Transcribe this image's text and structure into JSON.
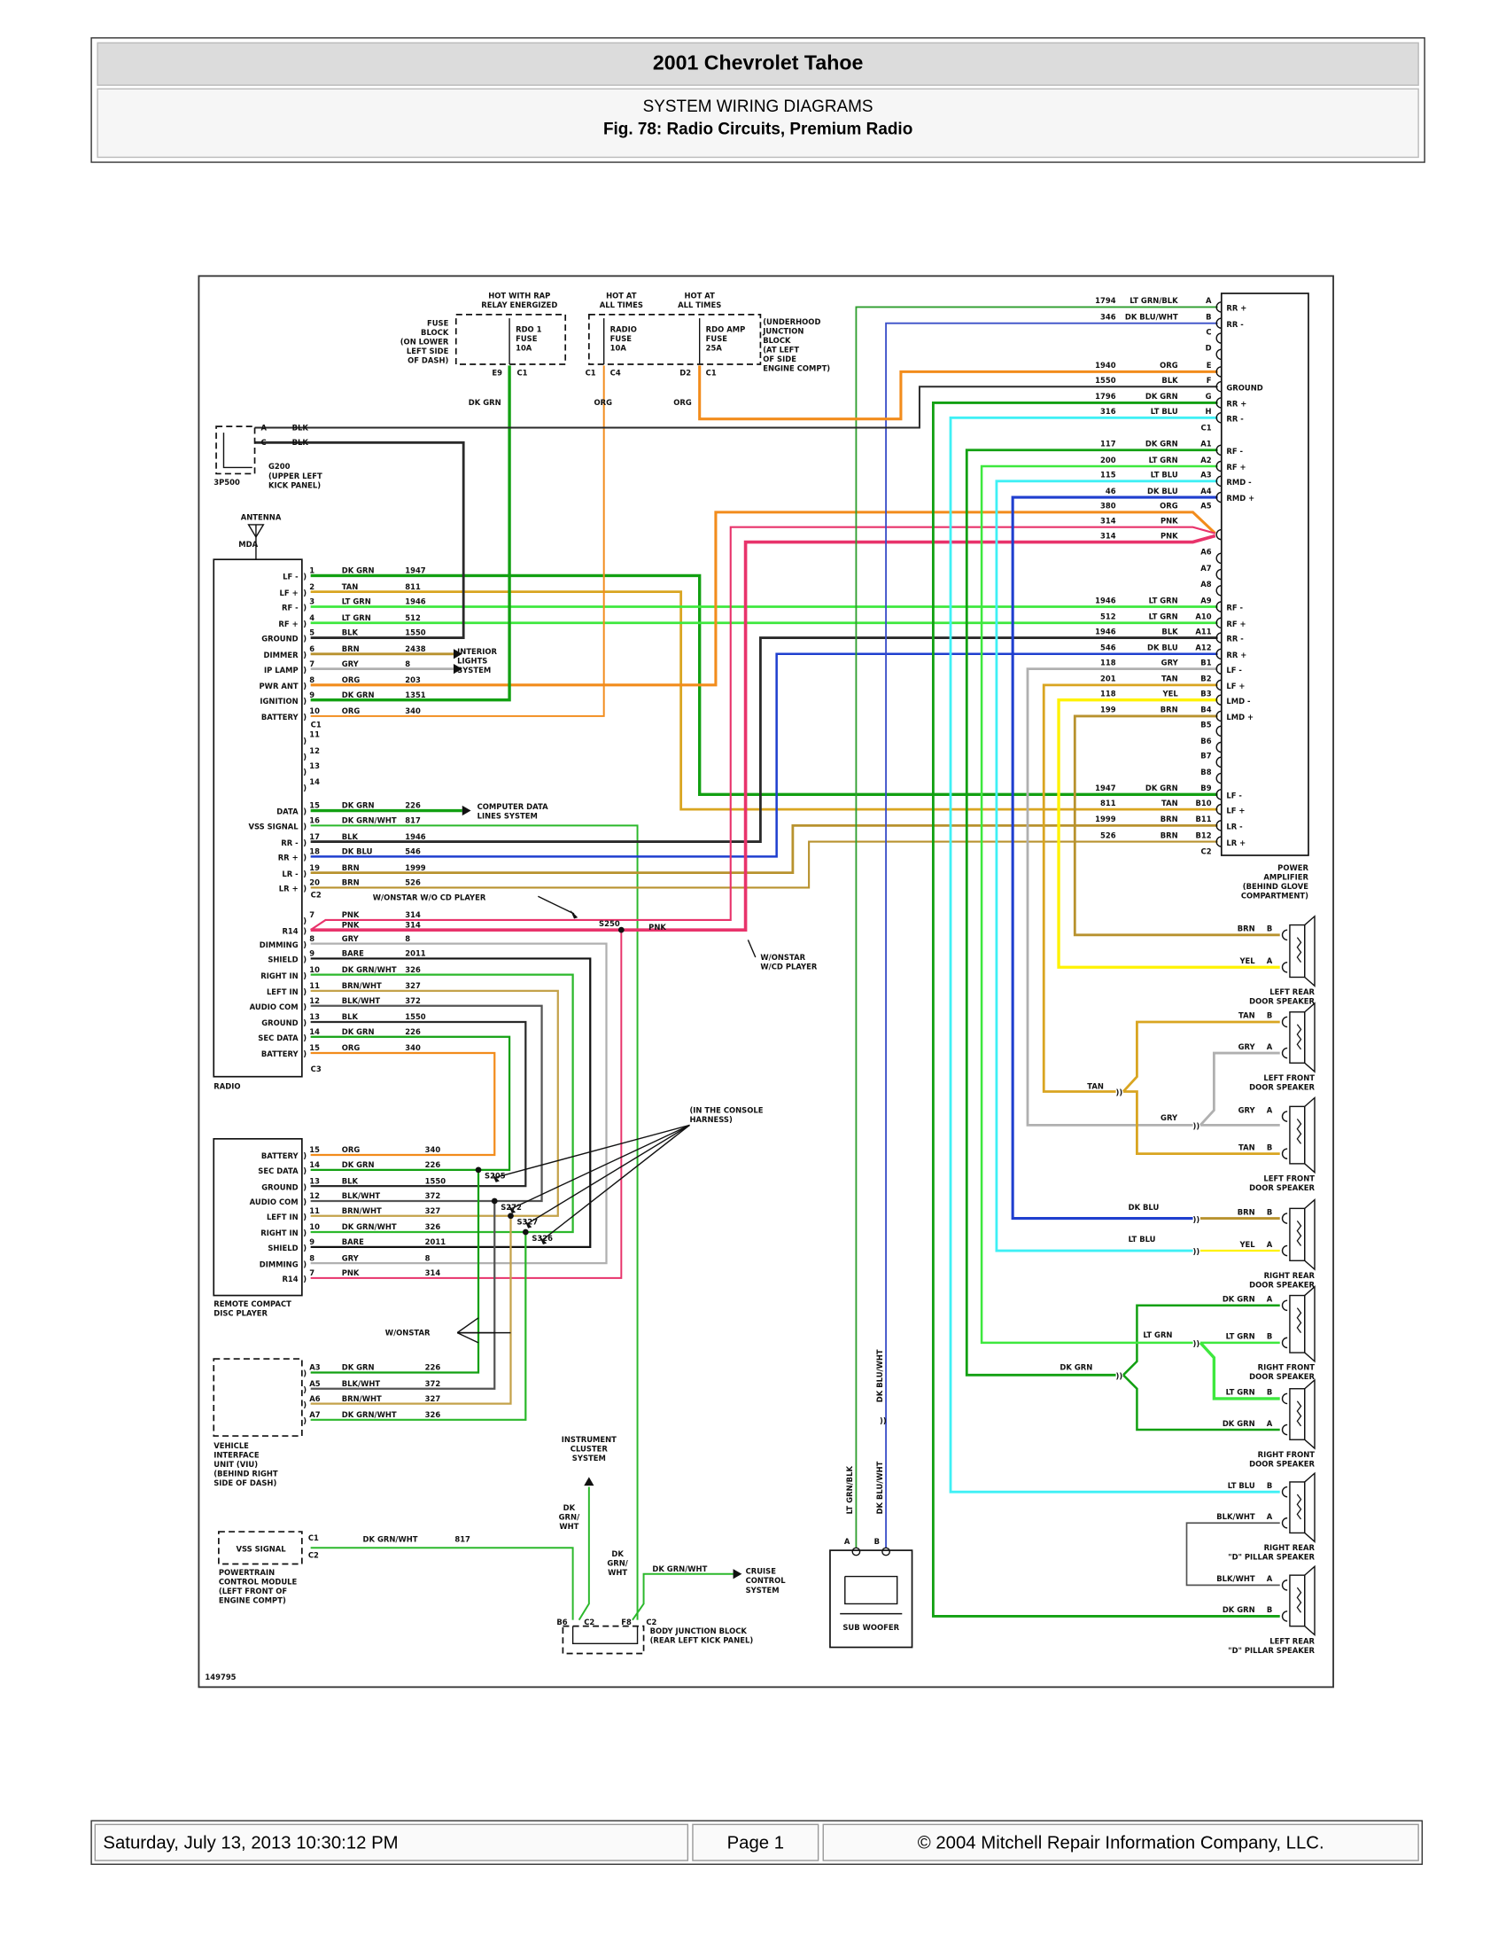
{
  "header": {
    "title": "2001 Chevrolet Tahoe",
    "section": "SYSTEM WIRING DIAGRAMS",
    "figure": "Fig. 78: Radio Circuits, Premium Radio"
  },
  "footer": {
    "timestamp": "Saturday, July 13, 2013 10:30:12 PM",
    "page": "Page 1",
    "copyright": "© 2004 Mitchell Repair Information Company, LLC."
  },
  "wire_colors": {
    "DK GRN": "#12a012",
    "LT GRN": "#3ee83e",
    "DK GRN/WHT": "#2bb82b",
    "LT GRN/BLK": "#2e9e2e",
    "TAN": "#d9a521",
    "ORG": "#f28c1c",
    "BLK": "#2a2a2a",
    "BLK/WHT": "#555555",
    "GRY": "#b0b0b0",
    "BARE": "#111111",
    "BRN": "#b8922e",
    "BRN/WHT": "#c4a24a",
    "PNK": "#e8336b",
    "DK BLU": "#1f3fcf",
    "DK BLU/WHT": "#3a4fc8",
    "LT BLU": "#3ff0f5",
    "YEL": "#fff200"
  },
  "fuses": {
    "rap_note": [
      "HOT WITH RAP",
      "RELAY ENERGIZED"
    ],
    "fuse_block": [
      "FUSE",
      "BLOCK",
      "(ON LOWER",
      "LEFT SIDE",
      "OF DASH)"
    ],
    "rdo1": [
      "RDO 1",
      "FUSE",
      "10A"
    ],
    "rdo1_pins": [
      "E9",
      "C1"
    ],
    "rdo1_wire": "DK GRN",
    "hot1": [
      "HOT AT",
      "ALL TIMES"
    ],
    "hot2": [
      "HOT AT",
      "ALL TIMES"
    ],
    "radio_fuse": [
      "RADIO",
      "FUSE",
      "10A"
    ],
    "radio_fuse_pins": [
      "C1",
      "C4"
    ],
    "radio_fuse_wire": "ORG",
    "amp_fuse": [
      "RDO AMP",
      "FUSE",
      "25A"
    ],
    "amp_fuse_pins": [
      "D2",
      "C1"
    ],
    "amp_fuse_wire": "ORG",
    "underhood": [
      "(UNDERHOOD",
      "JUNCTION",
      "BLOCK",
      "(AT LEFT",
      "OF SIDE",
      "ENGINE COMPT)"
    ]
  },
  "ground": {
    "connector": "3P500",
    "pin_a": "A",
    "pin_c": "C",
    "wire_a": "BLK",
    "wire_c": "BLK",
    "splice": "G200",
    "location": [
      "(UPPER LEFT",
      "KICK PANEL)"
    ]
  },
  "antenna": {
    "label": "ANTENNA",
    "connector": "MDA"
  },
  "radio": {
    "name": "RADIO",
    "c1_name": "C1",
    "c2_name": "C2",
    "c3_name": "C3",
    "c1": [
      {
        "pin": "1",
        "label": "LF -",
        "color": "DK GRN",
        "circuit": "1947"
      },
      {
        "pin": "2",
        "label": "LF +",
        "color": "TAN",
        "circuit": "811"
      },
      {
        "pin": "3",
        "label": "RF -",
        "color": "LT GRN",
        "circuit": "1946"
      },
      {
        "pin": "4",
        "label": "RF +",
        "color": "LT GRN",
        "circuit": "512"
      },
      {
        "pin": "5",
        "label": "GROUND",
        "color": "BLK",
        "circuit": "1550"
      },
      {
        "pin": "6",
        "label": "DIMMER",
        "color": "BRN",
        "circuit": "2438"
      },
      {
        "pin": "7",
        "label": "IP LAMP",
        "color": "GRY",
        "circuit": "8"
      },
      {
        "pin": "8",
        "label": "PWR ANT",
        "color": "ORG",
        "circuit": "203"
      },
      {
        "pin": "9",
        "label": "IGNITION",
        "color": "DK GRN",
        "circuit": "1351"
      },
      {
        "pin": "10",
        "label": "BATTERY",
        "color": "ORG",
        "circuit": "340"
      }
    ],
    "c2": [
      {
        "pin": "11",
        "label": "",
        "color": "",
        "circuit": ""
      },
      {
        "pin": "12",
        "label": "",
        "color": "",
        "circuit": ""
      },
      {
        "pin": "13",
        "label": "",
        "color": "",
        "circuit": ""
      },
      {
        "pin": "14",
        "label": "",
        "color": "",
        "circuit": ""
      },
      {
        "pin": "15",
        "label": "DATA",
        "color": "DK GRN",
        "circuit": "226"
      },
      {
        "pin": "16",
        "label": "VSS SIGNAL",
        "color": "DK GRN/WHT",
        "circuit": "817"
      },
      {
        "pin": "17",
        "label": "RR -",
        "color": "BLK",
        "circuit": "1946"
      },
      {
        "pin": "18",
        "label": "RR +",
        "color": "DK BLU",
        "circuit": "546"
      },
      {
        "pin": "19",
        "label": "LR -",
        "color": "BRN",
        "circuit": "1999"
      },
      {
        "pin": "20",
        "label": "LR +",
        "color": "BRN",
        "circuit": "526"
      }
    ],
    "c3": [
      {
        "pin": "7",
        "label": "",
        "color": "PNK",
        "circuit": "314"
      },
      {
        "pin": "",
        "label": "R14",
        "color": "PNK",
        "circuit": "314"
      },
      {
        "pin": "8",
        "label": "DIMMING",
        "color": "GRY",
        "circuit": "8"
      },
      {
        "pin": "9",
        "label": "SHIELD",
        "color": "BARE",
        "circuit": "2011"
      },
      {
        "pin": "10",
        "label": "RIGHT IN",
        "color": "DK GRN/WHT",
        "circuit": "326"
      },
      {
        "pin": "11",
        "label": "LEFT IN",
        "color": "BRN/WHT",
        "circuit": "327"
      },
      {
        "pin": "12",
        "label": "AUDIO COM",
        "color": "BLK/WHT",
        "circuit": "372"
      },
      {
        "pin": "13",
        "label": "GROUND",
        "color": "BLK",
        "circuit": "1550"
      },
      {
        "pin": "14",
        "label": "SEC DATA",
        "color": "DK GRN",
        "circuit": "226"
      },
      {
        "pin": "15",
        "label": "BATTERY",
        "color": "ORG",
        "circuit": "340"
      }
    ],
    "interior_lights": [
      "INTERIOR",
      "LIGHTS",
      "SYSTEM"
    ],
    "computer_data": [
      "COMPUTER DATA",
      "LINES SYSTEM"
    ],
    "without_cd_note": "W/ONSTAR W/O CD PLAYER",
    "with_cd_note": [
      "W/ONSTAR",
      "W/CD PLAYER"
    ],
    "splice": "S250",
    "splice_wire": "PNK"
  },
  "cd_player": {
    "name": [
      "REMOTE COMPACT",
      "DISC PLAYER"
    ],
    "pins": [
      {
        "pin": "15",
        "label": "BATTERY",
        "color": "ORG",
        "circuit": "340"
      },
      {
        "pin": "14",
        "label": "SEC DATA",
        "color": "DK GRN",
        "circuit": "226"
      },
      {
        "pin": "13",
        "label": "GROUND",
        "color": "BLK",
        "circuit": "1550"
      },
      {
        "pin": "12",
        "label": "AUDIO COM",
        "color": "BLK/WHT",
        "circuit": "372"
      },
      {
        "pin": "11",
        "label": "LEFT IN",
        "color": "BRN/WHT",
        "circuit": "327"
      },
      {
        "pin": "10",
        "label": "RIGHT IN",
        "color": "DK GRN/WHT",
        "circuit": "326"
      },
      {
        "pin": "9",
        "label": "SHIELD",
        "color": "BARE",
        "circuit": "2011"
      },
      {
        "pin": "8",
        "label": "DIMMING",
        "color": "GRY",
        "circuit": "8"
      },
      {
        "pin": "7",
        "label": "R14",
        "color": "PNK",
        "circuit": "314"
      }
    ],
    "harness_note": [
      "(IN THE CONSOLE",
      "HARNESS)"
    ],
    "splices": [
      "S205",
      "S272",
      "S327",
      "S326"
    ]
  },
  "viu": {
    "name": [
      "VEHICLE",
      "INTERFACE",
      "UNIT (VIU)",
      "(BEHIND RIGHT",
      "SIDE OF DASH)"
    ],
    "pins": [
      {
        "pin": "A3",
        "color": "DK GRN",
        "circuit": "226"
      },
      {
        "pin": "A5",
        "color": "BLK/WHT",
        "circuit": "372"
      },
      {
        "pin": "A6",
        "color": "BRN/WHT",
        "circuit": "327"
      },
      {
        "pin": "A7",
        "color": "DK GRN/WHT",
        "circuit": "326"
      }
    ],
    "onstar_note": "W/ONSTAR"
  },
  "pcm": {
    "signal": "VSS SIGNAL",
    "pins": [
      "C1",
      "C2"
    ],
    "wire": "DK GRN/WHT",
    "circuit": "817",
    "name": [
      "POWERTRAIN",
      "CONTROL MODULE",
      "(LEFT FRONT OF",
      "ENGINE COMPT)"
    ]
  },
  "body_junction": {
    "name": [
      "BODY JUNCTION BLOCK",
      "(REAR LEFT KICK PANEL)"
    ],
    "pins": [
      "B6",
      "C2",
      "F8",
      "C2"
    ],
    "ic_wire": [
      "DK",
      "GRN/",
      "WHT"
    ],
    "ic_label": [
      "INSTRUMENT",
      "CLUSTER",
      "SYSTEM"
    ],
    "in_wire": [
      "DK",
      "GRN/",
      "WHT"
    ],
    "cruise_wire": "DK GRN/WHT",
    "cruise_label": [
      "CRUISE",
      "CONTROL",
      "SYSTEM"
    ]
  },
  "amplifier": {
    "name": [
      "POWER",
      "AMPLIFIER",
      "(BEHIND GLOVE",
      "COMPARTMENT)"
    ],
    "pins": [
      {
        "pin": "A",
        "circuit": "1794",
        "color": "LT GRN/BLK",
        "label": "RR +"
      },
      {
        "pin": "B",
        "circuit": "346",
        "color": "DK BLU/WHT",
        "label": "RR -"
      },
      {
        "pin": "C",
        "circuit": "",
        "color": "",
        "label": ""
      },
      {
        "pin": "D",
        "circuit": "",
        "color": "",
        "label": ""
      },
      {
        "pin": "E",
        "circuit": "1940",
        "color": "ORG",
        "label": ""
      },
      {
        "pin": "F",
        "circuit": "1550",
        "color": "BLK",
        "label": "GROUND"
      },
      {
        "pin": "G",
        "circuit": "1796",
        "color": "DK GRN",
        "label": "RR +"
      },
      {
        "pin": "H",
        "circuit": "316",
        "color": "LT BLU",
        "label": "RR -"
      },
      {
        "pin": "C1",
        "circuit": "",
        "color": "",
        "label": ""
      },
      {
        "pin": "A1",
        "circuit": "117",
        "color": "DK GRN",
        "label": "RF -"
      },
      {
        "pin": "A2",
        "circuit": "200",
        "color": "LT GRN",
        "label": "RF +"
      },
      {
        "pin": "A3",
        "circuit": "115",
        "color": "LT BLU",
        "label": "RMD -"
      },
      {
        "pin": "A4",
        "circuit": "46",
        "color": "DK BLU",
        "label": "RMD +"
      },
      {
        "pin": "A5",
        "circuit": "380",
        "color": "ORG",
        "label": ""
      },
      {
        "pin": "",
        "circuit": "314",
        "color": "PNK",
        "label": ""
      },
      {
        "pin": "",
        "circuit": "314",
        "color": "PNK",
        "label": ""
      },
      {
        "pin": "A6",
        "circuit": "",
        "color": "",
        "label": ""
      },
      {
        "pin": "A7",
        "circuit": "",
        "color": "",
        "label": ""
      },
      {
        "pin": "A8",
        "circuit": "",
        "color": "",
        "label": ""
      },
      {
        "pin": "A9",
        "circuit": "1946",
        "color": "LT GRN",
        "label": "RF -"
      },
      {
        "pin": "A10",
        "circuit": "512",
        "color": "LT GRN",
        "label": "RF +"
      },
      {
        "pin": "A11",
        "circuit": "1946",
        "color": "BLK",
        "label": "RR -"
      },
      {
        "pin": "A12",
        "circuit": "546",
        "color": "DK BLU",
        "label": "RR +"
      },
      {
        "pin": "B1",
        "circuit": "118",
        "color": "GRY",
        "label": "LF -"
      },
      {
        "pin": "B2",
        "circuit": "201",
        "color": "TAN",
        "label": "LF +"
      },
      {
        "pin": "B3",
        "circuit": "118",
        "color": "YEL",
        "label": "LMD -"
      },
      {
        "pin": "B4",
        "circuit": "199",
        "color": "BRN",
        "label": "LMD +"
      },
      {
        "pin": "B5",
        "circuit": "",
        "color": "",
        "label": ""
      },
      {
        "pin": "B6",
        "circuit": "",
        "color": "",
        "label": ""
      },
      {
        "pin": "B7",
        "circuit": "",
        "color": "",
        "label": ""
      },
      {
        "pin": "B8",
        "circuit": "",
        "color": "",
        "label": ""
      },
      {
        "pin": "B9",
        "circuit": "1947",
        "color": "DK GRN",
        "label": "LF -"
      },
      {
        "pin": "B10",
        "circuit": "811",
        "color": "TAN",
        "label": "LF +"
      },
      {
        "pin": "B11",
        "circuit": "1999",
        "color": "BRN",
        "label": "LR -"
      },
      {
        "pin": "B12",
        "circuit": "526",
        "color": "BRN",
        "label": "LR +"
      },
      {
        "pin": "C2",
        "circuit": "",
        "color": "",
        "label": ""
      }
    ]
  },
  "subwoofer": {
    "name": "SUB WOOFER",
    "wire_a": "LT GRN/BLK",
    "wire_b": "DK BLU/WHT",
    "wire_b_upper": "DK BLU/WHT",
    "pin_a": "A",
    "pin_b": "B"
  },
  "speakers": [
    {
      "name": [
        "LEFT REAR",
        "DOOR SPEAKER"
      ],
      "pins": [
        {
          "pin": "B",
          "color": "BRN"
        },
        {
          "pin": "A",
          "color": "YEL"
        }
      ]
    },
    {
      "name": [
        "LEFT FRONT",
        "DOOR SPEAKER"
      ],
      "pins": [
        {
          "pin": "B",
          "color": "TAN"
        },
        {
          "pin": "A",
          "color": "GRY"
        }
      ]
    },
    {
      "name": [
        "LEFT FRONT",
        "DOOR SPEAKER"
      ],
      "pins": [
        {
          "pin": "A",
          "color": "GRY"
        },
        {
          "pin": "B",
          "color": "TAN"
        }
      ]
    },
    {
      "name": [
        "RIGHT REAR",
        "DOOR SPEAKER"
      ],
      "pins": [
        {
          "pin": "B",
          "color": "BRN"
        },
        {
          "pin": "A",
          "color": "YEL"
        }
      ]
    },
    {
      "name": [
        "RIGHT FRONT",
        "DOOR SPEAKER"
      ],
      "pins": [
        {
          "pin": "A",
          "color": "DK GRN"
        },
        {
          "pin": "B",
          "color": "LT GRN"
        }
      ]
    },
    {
      "name": [
        "RIGHT FRONT",
        "DOOR SPEAKER"
      ],
      "pins": [
        {
          "pin": "B",
          "color": "LT GRN"
        },
        {
          "pin": "A",
          "color": "DK GRN"
        }
      ]
    },
    {
      "name": [
        "RIGHT REAR",
        "\"D\" PILLAR SPEAKER"
      ],
      "pins": [
        {
          "pin": "B",
          "color": "LT BLU"
        },
        {
          "pin": "A",
          "color": "BLK/WHT"
        }
      ]
    },
    {
      "name": [
        "LEFT REAR",
        "\"D\" PILLAR SPEAKER"
      ],
      "pins": [
        {
          "pin": "A",
          "color": "BLK/WHT"
        },
        {
          "pin": "B",
          "color": "DK GRN"
        }
      ]
    }
  ],
  "inline_wire_labels": [
    "TAN",
    "GRY",
    "DK BLU",
    "LT BLU",
    "LT GRN",
    "DK GRN"
  ],
  "figure_id": "149795"
}
